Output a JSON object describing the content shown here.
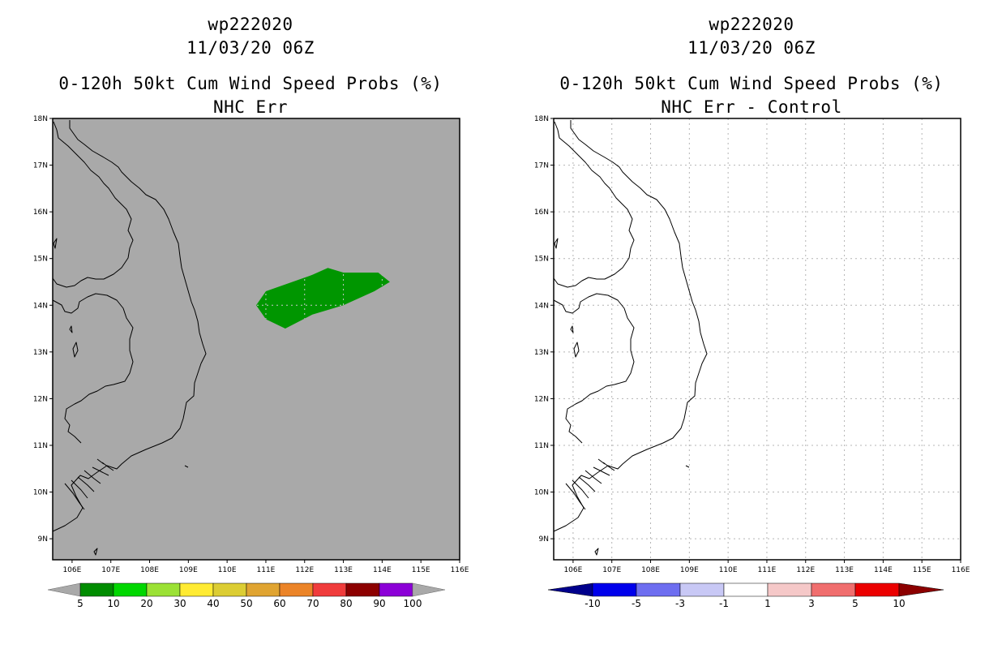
{
  "panels": [
    {
      "id": "left",
      "storm_id": "wp222020",
      "datetime": "11/03/20 06Z",
      "product": "0-120h 50kt Cum Wind Speed Probs (%)",
      "subtitle": "NHC Err",
      "background_color": "#a9a9a9",
      "colorbar": {
        "labels": [
          "5",
          "10",
          "20",
          "30",
          "40",
          "50",
          "60",
          "70",
          "80",
          "90",
          "100"
        ],
        "colors": [
          "#a9a9a9",
          "#008c00",
          "#00d700",
          "#9be135",
          "#ffeb33",
          "#dccd33",
          "#e0a431",
          "#eb8428",
          "#f03c3c",
          "#8c0000",
          "#8c00d7",
          "#a9a9a9"
        ]
      }
    },
    {
      "id": "right",
      "storm_id": "wp222020",
      "datetime": "11/03/20 06Z",
      "product": "0-120h 50kt Cum Wind Speed Probs (%)",
      "subtitle": "NHC Err - Control",
      "background_color": "#ffffff",
      "colorbar": {
        "labels": [
          "-10",
          "-5",
          "-3",
          "-1",
          "1",
          "3",
          "5",
          "10"
        ],
        "colors": [
          "#00008c",
          "#0000eb",
          "#6e6ef0",
          "#c8c8f5",
          "#ffffff",
          "#f5c8c8",
          "#f06e6e",
          "#eb0000",
          "#8c0000"
        ]
      }
    }
  ],
  "axes": {
    "lat_labels": [
      "18N",
      "17N",
      "16N",
      "15N",
      "14N",
      "13N",
      "12N",
      "11N",
      "10N",
      "9N"
    ],
    "lon_labels": [
      "106E",
      "107E",
      "108E",
      "109E",
      "110E",
      "111E",
      "112E",
      "113E",
      "114E",
      "115E",
      "116E"
    ],
    "lat_values": [
      18,
      17,
      16,
      15,
      14,
      13,
      12,
      11,
      10,
      9
    ],
    "lon_values": [
      106,
      107,
      108,
      109,
      110,
      111,
      112,
      113,
      114,
      115,
      116
    ],
    "lon_range": [
      105.5,
      116
    ],
    "lat_range": [
      8.55,
      18
    ]
  },
  "map_features": {
    "probability_area": {
      "fill_color": "#009600",
      "probability_range": "5-10",
      "polygon_lonlat": [
        [
          110.75,
          14.0
        ],
        [
          111.0,
          14.3
        ],
        [
          112.2,
          14.65
        ],
        [
          112.6,
          14.8
        ],
        [
          113.0,
          14.7
        ],
        [
          113.9,
          14.7
        ],
        [
          114.2,
          14.5
        ],
        [
          113.8,
          14.3
        ],
        [
          113.0,
          14.0
        ],
        [
          112.2,
          13.8
        ],
        [
          111.5,
          13.5
        ],
        [
          111.0,
          13.7
        ],
        [
          110.75,
          14.0
        ]
      ]
    }
  }
}
